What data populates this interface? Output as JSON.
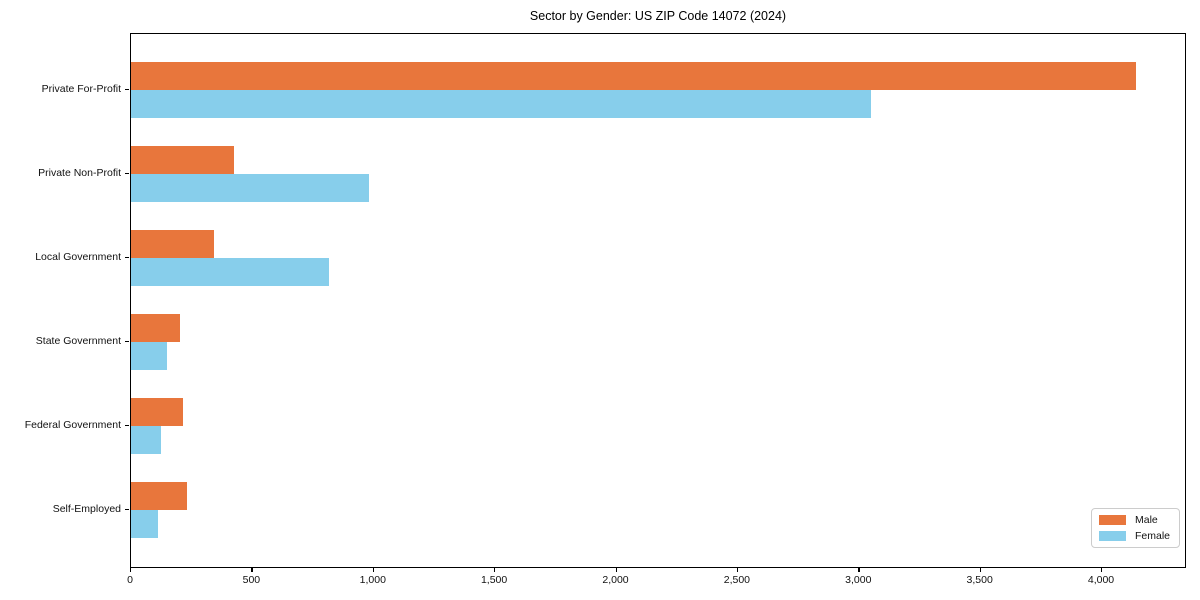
{
  "title": "Sector by Gender: US ZIP Code 14072 (2024)",
  "chart_data": {
    "type": "bar",
    "orientation": "horizontal",
    "title": "Sector by Gender: US ZIP Code 14072 (2024)",
    "xlabel": "",
    "ylabel": "",
    "categories": [
      "Private For-Profit",
      "Private Non-Profit",
      "Local Government",
      "State Government",
      "Federal Government",
      "Self-Employed"
    ],
    "series": [
      {
        "name": "Male",
        "color": "#E8763C",
        "values": [
          4140,
          425,
          340,
          200,
          215,
          230
        ]
      },
      {
        "name": "Female",
        "color": "#87CEEB",
        "values": [
          3050,
          980,
          815,
          150,
          125,
          110
        ]
      }
    ],
    "xlim": [
      0,
      4350
    ],
    "xticks": [
      0,
      500,
      1000,
      1500,
      2000,
      2500,
      3000,
      3500,
      4000
    ],
    "xtick_labels": [
      "0",
      "500",
      "1,000",
      "1,500",
      "2,000",
      "2,500",
      "3,000",
      "3,500",
      "4,000"
    ],
    "grid": false,
    "legend": {
      "position": "lower right",
      "entries": [
        "Male",
        "Female"
      ]
    }
  }
}
